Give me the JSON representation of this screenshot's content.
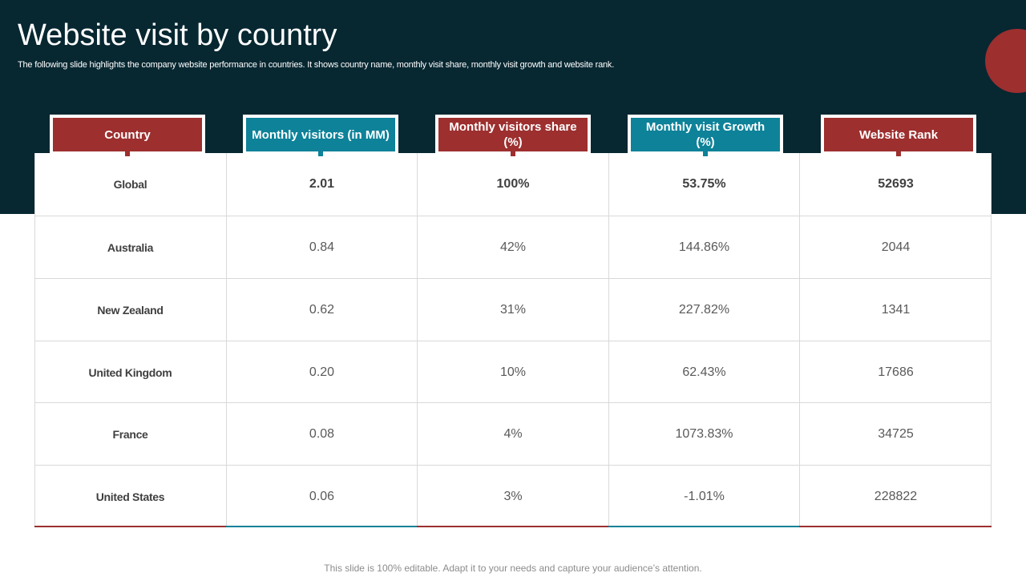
{
  "slide": {
    "title": "Website visit by country",
    "subtitle": "The following slide highlights the company website performance in countries. It shows country name, monthly visit share, monthly visit growth and website rank.",
    "footer": "This slide is 100% editable. Adapt it to your needs and capture your audience’s attention."
  },
  "colors": {
    "dark_band": "#072731",
    "red": "#9d2f2f",
    "teal": "#0e8299"
  },
  "table": {
    "headers": [
      {
        "label": "Country",
        "color": "red"
      },
      {
        "label": "Monthly visitors (in MM)",
        "color": "teal"
      },
      {
        "label": "Monthly visitors share (%)",
        "color": "red"
      },
      {
        "label": "Monthly visit Growth (%)",
        "color": "teal"
      },
      {
        "label": "Website Rank",
        "color": "red"
      }
    ],
    "rows": [
      [
        "Global",
        "2.01",
        "100%",
        "53.75%",
        "52693"
      ],
      [
        "Australia",
        "0.84",
        "42%",
        "144.86%",
        "2044"
      ],
      [
        "New Zealand",
        "0.62",
        "31%",
        "227.82%",
        "1341"
      ],
      [
        "United Kingdom",
        "0.20",
        "10%",
        "62.43%",
        "17686"
      ],
      [
        "France",
        "0.08",
        "4%",
        "1073.83%",
        "34725"
      ],
      [
        "United States",
        "0.06",
        "3%",
        "-1.01%",
        "228822"
      ]
    ]
  }
}
